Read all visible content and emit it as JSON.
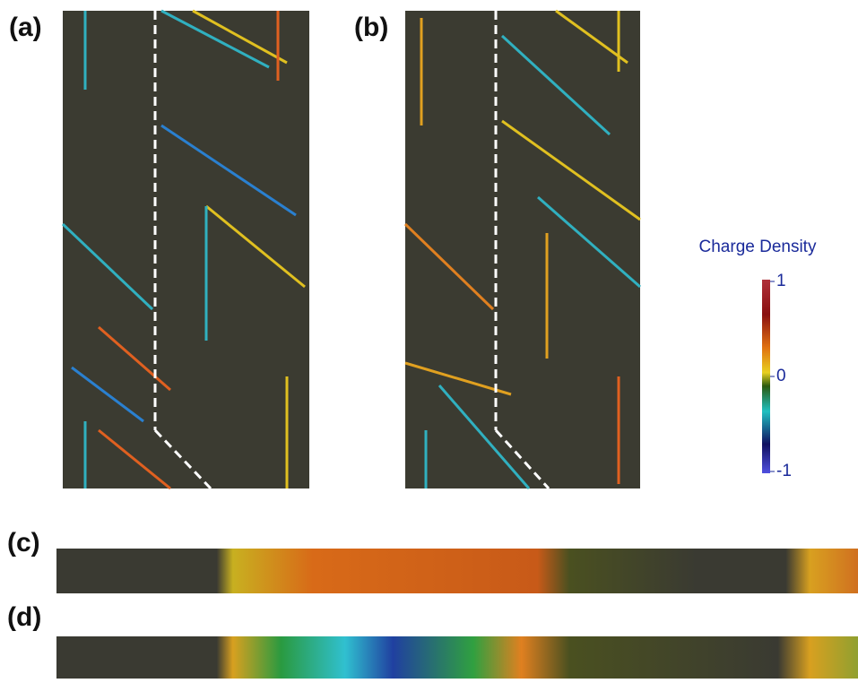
{
  "panels": [
    {
      "label": "(a)"
    },
    {
      "label": "(b)"
    },
    {
      "label": "(c)"
    },
    {
      "label": "(d)"
    }
  ],
  "colorbar": {
    "title": "Charge Density",
    "ticks": [
      1,
      0,
      -1
    ]
  }
}
